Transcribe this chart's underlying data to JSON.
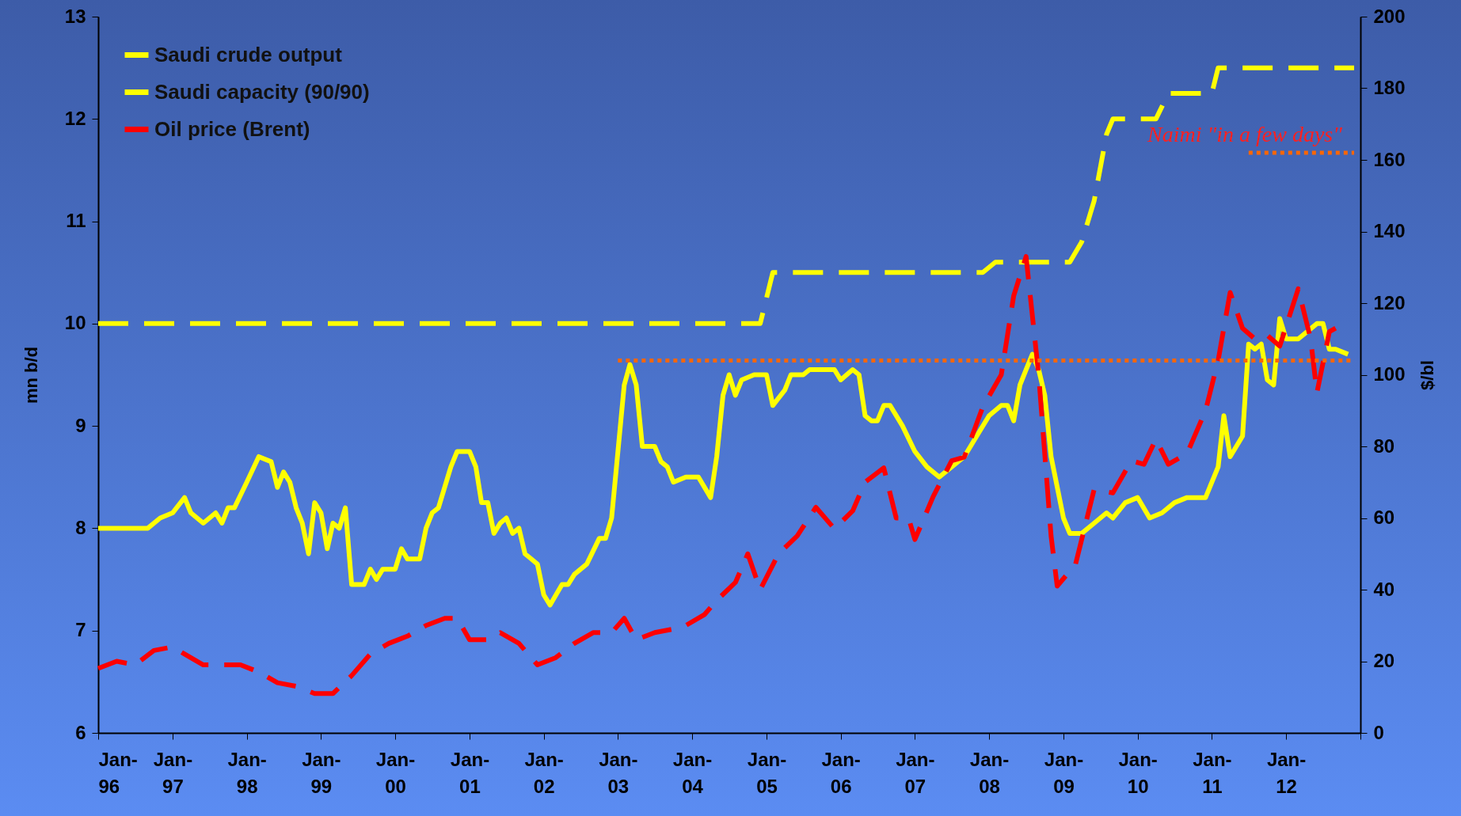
{
  "chart_data": {
    "type": "line",
    "ylabel": "mn b/d",
    "y2label": "$/bl",
    "xlim": [
      "1996-01",
      "2013-01"
    ],
    "xticks": [
      {
        "value": "1996-01",
        "label": "Jan-96"
      },
      {
        "value": "1997-01",
        "label": "Jan-97"
      },
      {
        "value": "1998-01",
        "label": "Jan-98"
      },
      {
        "value": "1999-01",
        "label": "Jan-99"
      },
      {
        "value": "2000-01",
        "label": "Jan-00"
      },
      {
        "value": "2001-01",
        "label": "Jan-01"
      },
      {
        "value": "2002-01",
        "label": "Jan-02"
      },
      {
        "value": "2003-01",
        "label": "Jan-03"
      },
      {
        "value": "2004-01",
        "label": "Jan-04"
      },
      {
        "value": "2005-01",
        "label": "Jan-05"
      },
      {
        "value": "2006-01",
        "label": "Jan-06"
      },
      {
        "value": "2007-01",
        "label": "Jan-07"
      },
      {
        "value": "2008-01",
        "label": "Jan-08"
      },
      {
        "value": "2009-01",
        "label": "Jan-09"
      },
      {
        "value": "2010-01",
        "label": "Jan-10"
      },
      {
        "value": "2011-01",
        "label": "Jan-11"
      },
      {
        "value": "2012-01",
        "label": "Jan-12"
      },
      {
        "value": "2013-01",
        "label": null
      }
    ],
    "ylim": [
      6,
      13
    ],
    "yticks": [
      6,
      7,
      8,
      9,
      10,
      11,
      12,
      13
    ],
    "y2lim": [
      0,
      200
    ],
    "y2ticks": [
      0,
      20,
      40,
      60,
      80,
      100,
      120,
      140,
      160,
      180,
      200
    ],
    "grid": false,
    "legend": "top left",
    "annotations": [
      "Naimi \"in a few days\""
    ],
    "series": [
      {
        "name": "Saudi crude output",
        "color": "#ffff00",
        "line_style": "solid",
        "x": [
          "1996-01",
          "1996-09",
          "1996-11",
          "1997-01",
          "1997-03",
          "1997-04",
          "1997-06",
          "1997-08",
          "1997-09",
          "1997-10",
          "1997-11",
          "1998-01",
          "1998-03",
          "1998-05",
          "1998-06",
          "1998-07",
          "1998-08",
          "1998-09",
          "1998-10",
          "1998-11",
          "1998-12",
          "1999-01",
          "1999-02",
          "1999-03",
          "1999-04",
          "1999-05",
          "1999-06",
          "1999-08",
          "1999-09",
          "1999-10",
          "1999-11",
          "2000-01",
          "2000-02",
          "2000-03",
          "2000-05",
          "2000-06",
          "2000-07",
          "2000-08",
          "2000-10",
          "2000-11",
          "2001-01",
          "2001-02",
          "2001-03",
          "2001-04",
          "2001-05",
          "2001-06",
          "2001-07",
          "2001-08",
          "2001-09",
          "2001-10",
          "2001-11",
          "2001-12",
          "2002-01",
          "2002-02",
          "2002-04",
          "2002-05",
          "2002-06",
          "2002-08",
          "2002-10",
          "2002-11",
          "2002-12",
          "2003-02",
          "2003-03",
          "2003-04",
          "2003-05",
          "2003-07",
          "2003-08",
          "2003-09",
          "2003-10",
          "2003-12",
          "2004-02",
          "2004-04",
          "2004-05",
          "2004-06",
          "2004-07",
          "2004-08",
          "2004-09",
          "2004-11",
          "2005-01",
          "2005-02",
          "2005-04",
          "2005-05",
          "2005-07",
          "2005-08",
          "2005-12",
          "2006-01",
          "2006-03",
          "2006-04",
          "2006-05",
          "2006-06",
          "2006-07",
          "2006-08",
          "2006-09",
          "2006-11",
          "2007-01",
          "2007-03",
          "2007-05",
          "2007-07",
          "2007-09",
          "2007-11",
          "2008-01",
          "2008-03",
          "2008-04",
          "2008-05",
          "2008-06",
          "2008-07",
          "2008-08",
          "2008-09",
          "2008-10",
          "2008-11",
          "2009-01",
          "2009-02",
          "2009-04",
          "2009-06",
          "2009-08",
          "2009-09",
          "2009-11",
          "2010-01",
          "2010-03",
          "2010-05",
          "2010-07",
          "2010-09",
          "2010-12",
          "2011-02",
          "2011-03",
          "2011-04",
          "2011-06",
          "2011-07",
          "2011-08",
          "2011-09",
          "2011-10",
          "2011-11",
          "2011-12",
          "2012-01",
          "2012-03",
          "2012-06",
          "2012-07",
          "2012-08",
          "2012-09",
          "2012-11"
        ],
        "values": [
          8.0,
          8.0,
          8.1,
          8.15,
          8.3,
          8.15,
          8.05,
          8.15,
          8.05,
          8.2,
          8.2,
          8.45,
          8.7,
          8.65,
          8.4,
          8.55,
          8.45,
          8.2,
          8.05,
          7.75,
          8.25,
          8.15,
          7.8,
          8.05,
          8.0,
          8.2,
          7.45,
          7.45,
          7.6,
          7.5,
          7.6,
          7.6,
          7.8,
          7.7,
          7.7,
          8.0,
          8.15,
          8.2,
          8.6,
          8.75,
          8.75,
          8.6,
          8.25,
          8.25,
          7.95,
          8.05,
          8.1,
          7.95,
          8.0,
          7.75,
          7.7,
          7.65,
          7.35,
          7.25,
          7.45,
          7.45,
          7.55,
          7.65,
          7.9,
          7.9,
          8.1,
          9.4,
          9.6,
          9.4,
          8.8,
          8.8,
          8.65,
          8.6,
          8.45,
          8.5,
          8.5,
          8.3,
          8.7,
          9.3,
          9.5,
          9.3,
          9.45,
          9.5,
          9.5,
          9.2,
          9.35,
          9.5,
          9.5,
          9.55,
          9.55,
          9.45,
          9.55,
          9.5,
          9.1,
          9.05,
          9.05,
          9.2,
          9.2,
          9.0,
          8.75,
          8.6,
          8.5,
          8.6,
          8.7,
          8.9,
          9.1,
          9.2,
          9.2,
          9.05,
          9.4,
          9.55,
          9.7,
          9.55,
          9.3,
          8.7,
          8.1,
          7.95,
          7.95,
          8.05,
          8.15,
          8.1,
          8.25,
          8.3,
          8.1,
          8.15,
          8.25,
          8.3,
          8.3,
          8.6,
          9.1,
          8.7,
          8.9,
          9.8,
          9.75,
          9.8,
          9.45,
          9.4,
          10.05,
          9.85,
          9.85,
          10.0,
          10.0,
          9.75,
          9.75,
          9.7
        ]
      },
      {
        "name": "Saudi capacity (90/90)",
        "color": "#ffff00",
        "line_style": "dashed",
        "x": [
          "1996-01",
          "2004-12",
          "2005-02",
          "2007-12",
          "2008-02",
          "2009-02",
          "2009-04",
          "2009-06",
          "2009-08",
          "2009-09",
          "2010-04",
          "2010-06",
          "2011-01",
          "2011-02",
          "2012-12"
        ],
        "values": [
          10.0,
          10.0,
          10.5,
          10.5,
          10.6,
          10.6,
          10.8,
          11.2,
          11.85,
          12.0,
          12.0,
          12.25,
          12.25,
          12.5,
          12.5
        ]
      },
      {
        "name": "Oil price (Brent)",
        "color": "#ff0000",
        "line_style": "dashed",
        "axis": "y2",
        "x": [
          "1996-01",
          "1996-04",
          "1996-07",
          "1996-10",
          "1997-01",
          "1997-03",
          "1997-06",
          "1997-09",
          "1997-12",
          "1998-03",
          "1998-06",
          "1998-09",
          "1998-12",
          "1999-03",
          "1999-06",
          "1999-09",
          "1999-12",
          "2000-03",
          "2000-06",
          "2000-09",
          "2000-11",
          "2001-01",
          "2001-04",
          "2001-06",
          "2001-09",
          "2001-12",
          "2002-03",
          "2002-06",
          "2002-09",
          "2002-12",
          "2003-02",
          "2003-04",
          "2003-07",
          "2003-10",
          "2003-12",
          "2004-03",
          "2004-05",
          "2004-08",
          "2004-10",
          "2004-12",
          "2005-03",
          "2005-06",
          "2005-09",
          "2005-12",
          "2006-03",
          "2006-05",
          "2006-08",
          "2006-10",
          "2006-12",
          "2007-01",
          "2007-04",
          "2007-07",
          "2007-09",
          "2007-12",
          "2008-03",
          "2008-05",
          "2008-07",
          "2008-09",
          "2008-11",
          "2008-12",
          "2009-03",
          "2009-06",
          "2009-09",
          "2009-12",
          "2010-02",
          "2010-04",
          "2010-06",
          "2010-09",
          "2010-12",
          "2011-02",
          "2011-04",
          "2011-06",
          "2011-08",
          "2011-10",
          "2011-12",
          "2012-03",
          "2012-05",
          "2012-06",
          "2012-08",
          "2012-09"
        ],
        "values": [
          18,
          20,
          19,
          23,
          24,
          22,
          19,
          19,
          19,
          17,
          14,
          13,
          11,
          11,
          16,
          22,
          25,
          27,
          30,
          32,
          32,
          26,
          26,
          28,
          25,
          19,
          21,
          25,
          28,
          28,
          32,
          26,
          28,
          29,
          30,
          33,
          37,
          42,
          50,
          40,
          50,
          55,
          63,
          57,
          62,
          70,
          74,
          60,
          60,
          54,
          66,
          76,
          77,
          91,
          100,
          122,
          133,
          100,
          55,
          41,
          47,
          68,
          67,
          76,
          75,
          82,
          75,
          78,
          90,
          104,
          123,
          113,
          110,
          111,
          108,
          124,
          110,
          95,
          112,
          113
        ]
      },
      {
        "color": "#ff6600",
        "line_style": "dotted",
        "axis": "y2",
        "x": [
          "2003-01",
          "2012-12"
        ],
        "values": [
          104,
          104
        ]
      },
      {
        "color": "#ff6600",
        "line_style": "dotted",
        "axis": "y2",
        "x": [
          "2011-07",
          "2012-12"
        ],
        "values": [
          162,
          162
        ]
      }
    ]
  }
}
